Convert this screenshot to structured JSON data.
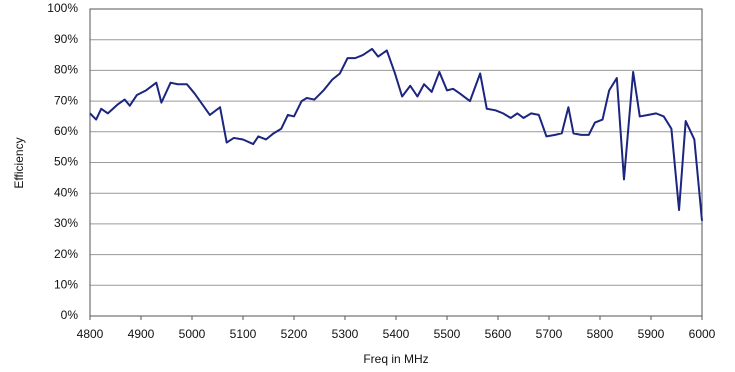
{
  "chart_data": {
    "type": "line",
    "x_label": "Freq in MHz",
    "y_label": "Efficiency",
    "x": [
      4800,
      4812,
      4822,
      4835,
      4855,
      4868,
      4878,
      4892,
      4910,
      4930,
      4940,
      4958,
      4972,
      4990,
      5005,
      5020,
      5035,
      5055,
      5068,
      5082,
      5100,
      5120,
      5130,
      5145,
      5160,
      5175,
      5188,
      5200,
      5215,
      5225,
      5240,
      5258,
      5275,
      5290,
      5305,
      5320,
      5335,
      5353,
      5365,
      5382,
      5398,
      5412,
      5428,
      5442,
      5455,
      5470,
      5485,
      5500,
      5512,
      5525,
      5545,
      5565,
      5578,
      5595,
      5610,
      5625,
      5638,
      5650,
      5665,
      5680,
      5695,
      5712,
      5725,
      5738,
      5748,
      5763,
      5778,
      5790,
      5805,
      5818,
      5833,
      5847,
      5865,
      5878,
      5895,
      5910,
      5925,
      5940,
      5955,
      5968,
      5985,
      6000
    ],
    "series": [
      {
        "color": "#1c2580",
        "values": [
          66,
          64,
          67.5,
          66,
          69,
          70.5,
          68.5,
          72,
          73.5,
          76,
          69.5,
          76,
          75.5,
          75.5,
          72.5,
          69,
          65.5,
          68,
          56.5,
          58,
          57.5,
          56,
          58.5,
          57.5,
          59.5,
          61,
          65.5,
          65,
          70,
          71,
          70.5,
          73.5,
          77,
          79,
          84,
          84,
          85,
          87,
          84.5,
          86.5,
          79,
          71.5,
          75,
          71.5,
          75.5,
          73,
          79.5,
          73.5,
          74,
          72.5,
          70,
          79,
          67.5,
          67,
          66,
          64.5,
          66,
          64.5,
          66,
          65.5,
          58.5,
          59,
          59.5,
          68,
          59.5,
          59,
          59,
          63,
          64,
          73.5,
          77.5,
          44.5,
          79.5,
          65,
          65.5,
          66,
          65,
          61,
          34.5,
          63.5,
          57.5,
          31
        ]
      }
    ],
    "xlim": [
      4800,
      6000
    ],
    "xticks": [
      4800,
      4900,
      5000,
      5100,
      5200,
      5300,
      5400,
      5500,
      5600,
      5700,
      5800,
      5900,
      6000
    ],
    "ylim": [
      0,
      100
    ],
    "yticks": [
      {
        "value": 0,
        "label": "0%"
      },
      {
        "value": 10,
        "label": "10%"
      },
      {
        "value": 20,
        "label": "20%"
      },
      {
        "value": 30,
        "label": "30%"
      },
      {
        "value": 40,
        "label": "40%"
      },
      {
        "value": 50,
        "label": "50%"
      },
      {
        "value": 60,
        "label": "60%"
      },
      {
        "value": 70,
        "label": "70%"
      },
      {
        "value": 80,
        "label": "80%"
      },
      {
        "value": 90,
        "label": "90%"
      },
      {
        "value": 100,
        "label": "100%"
      }
    ],
    "grid": true
  }
}
